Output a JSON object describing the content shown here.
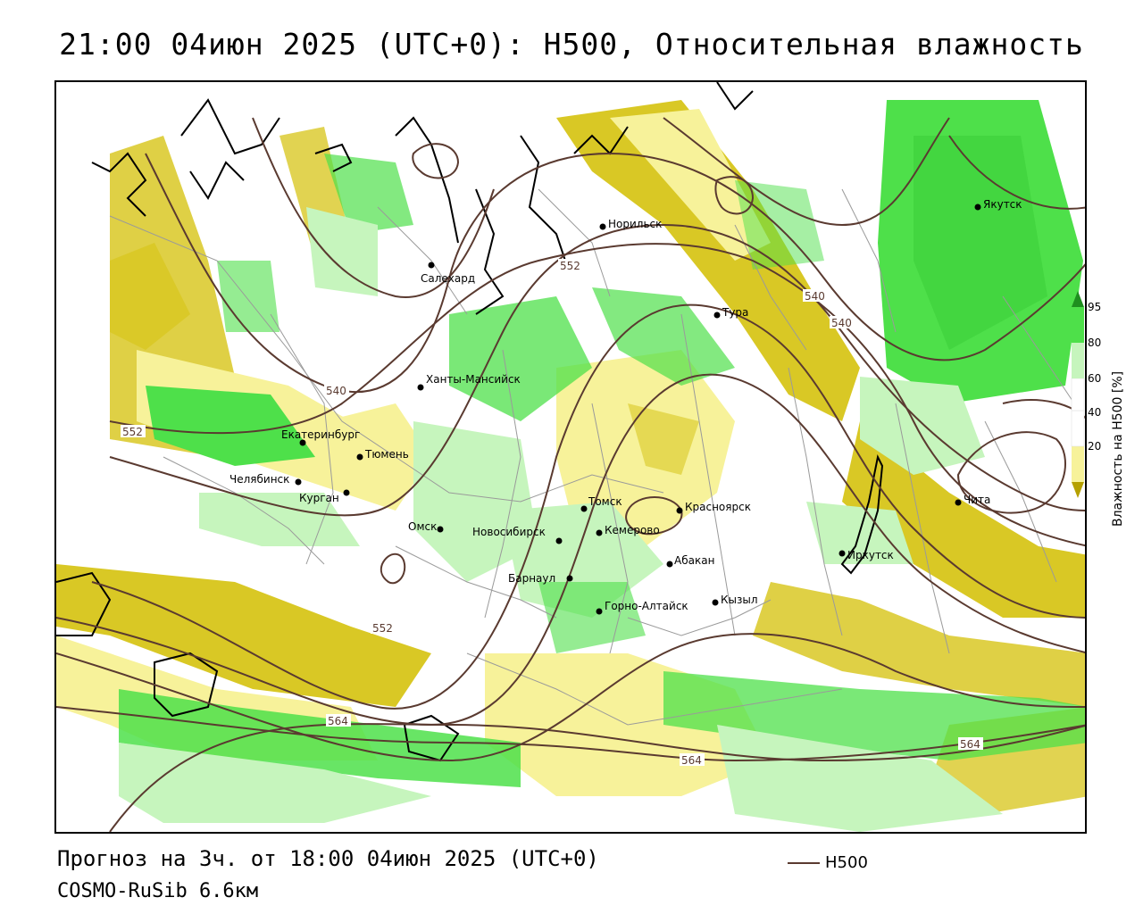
{
  "title": "21:00 04июн 2025 (UTC+0): H500, Относительная влажность",
  "footer": {
    "forecast": "Прогноз на 3ч. от 18:00 04июн 2025 (UTC+0)",
    "model": "COSMO-RuSib 6.6км"
  },
  "legend": {
    "line_label": "H500",
    "line_color": "#5a3a30"
  },
  "colorbar": {
    "title": "Влажность на H500 [%]",
    "ticks": [
      "95",
      "80",
      "60",
      "40",
      "20"
    ],
    "colors": {
      "very_dry": "#b5a000",
      "dry": "#d9c825",
      "mid_dry": "#f7f29a",
      "neutral": "#ffffff",
      "moist": "#c6f5bd",
      "wet": "#4ee04a",
      "very_wet": "#1f8f1f"
    }
  },
  "cities": [
    {
      "name": "Салехард"
    },
    {
      "name": "Норильск"
    },
    {
      "name": "Якутск"
    },
    {
      "name": "Тура"
    },
    {
      "name": "Ханты-Мансийск"
    },
    {
      "name": "Екатеринбург"
    },
    {
      "name": "Тюмень"
    },
    {
      "name": "Челябинск"
    },
    {
      "name": "Курган"
    },
    {
      "name": "Омск"
    },
    {
      "name": "Новосибирск"
    },
    {
      "name": "Томск"
    },
    {
      "name": "Кемерово"
    },
    {
      "name": "Красноярск"
    },
    {
      "name": "Барнаул"
    },
    {
      "name": "Абакан"
    },
    {
      "name": "Горно-Алтайск"
    },
    {
      "name": "Кызыл"
    },
    {
      "name": "Иркутск"
    },
    {
      "name": "Чита"
    }
  ],
  "isolines": [
    {
      "label": "552"
    },
    {
      "label": "540"
    },
    {
      "label": "540"
    },
    {
      "label": "540"
    },
    {
      "label": "552"
    },
    {
      "label": "552"
    },
    {
      "label": "564"
    },
    {
      "label": "564"
    },
    {
      "label": "564"
    }
  ]
}
